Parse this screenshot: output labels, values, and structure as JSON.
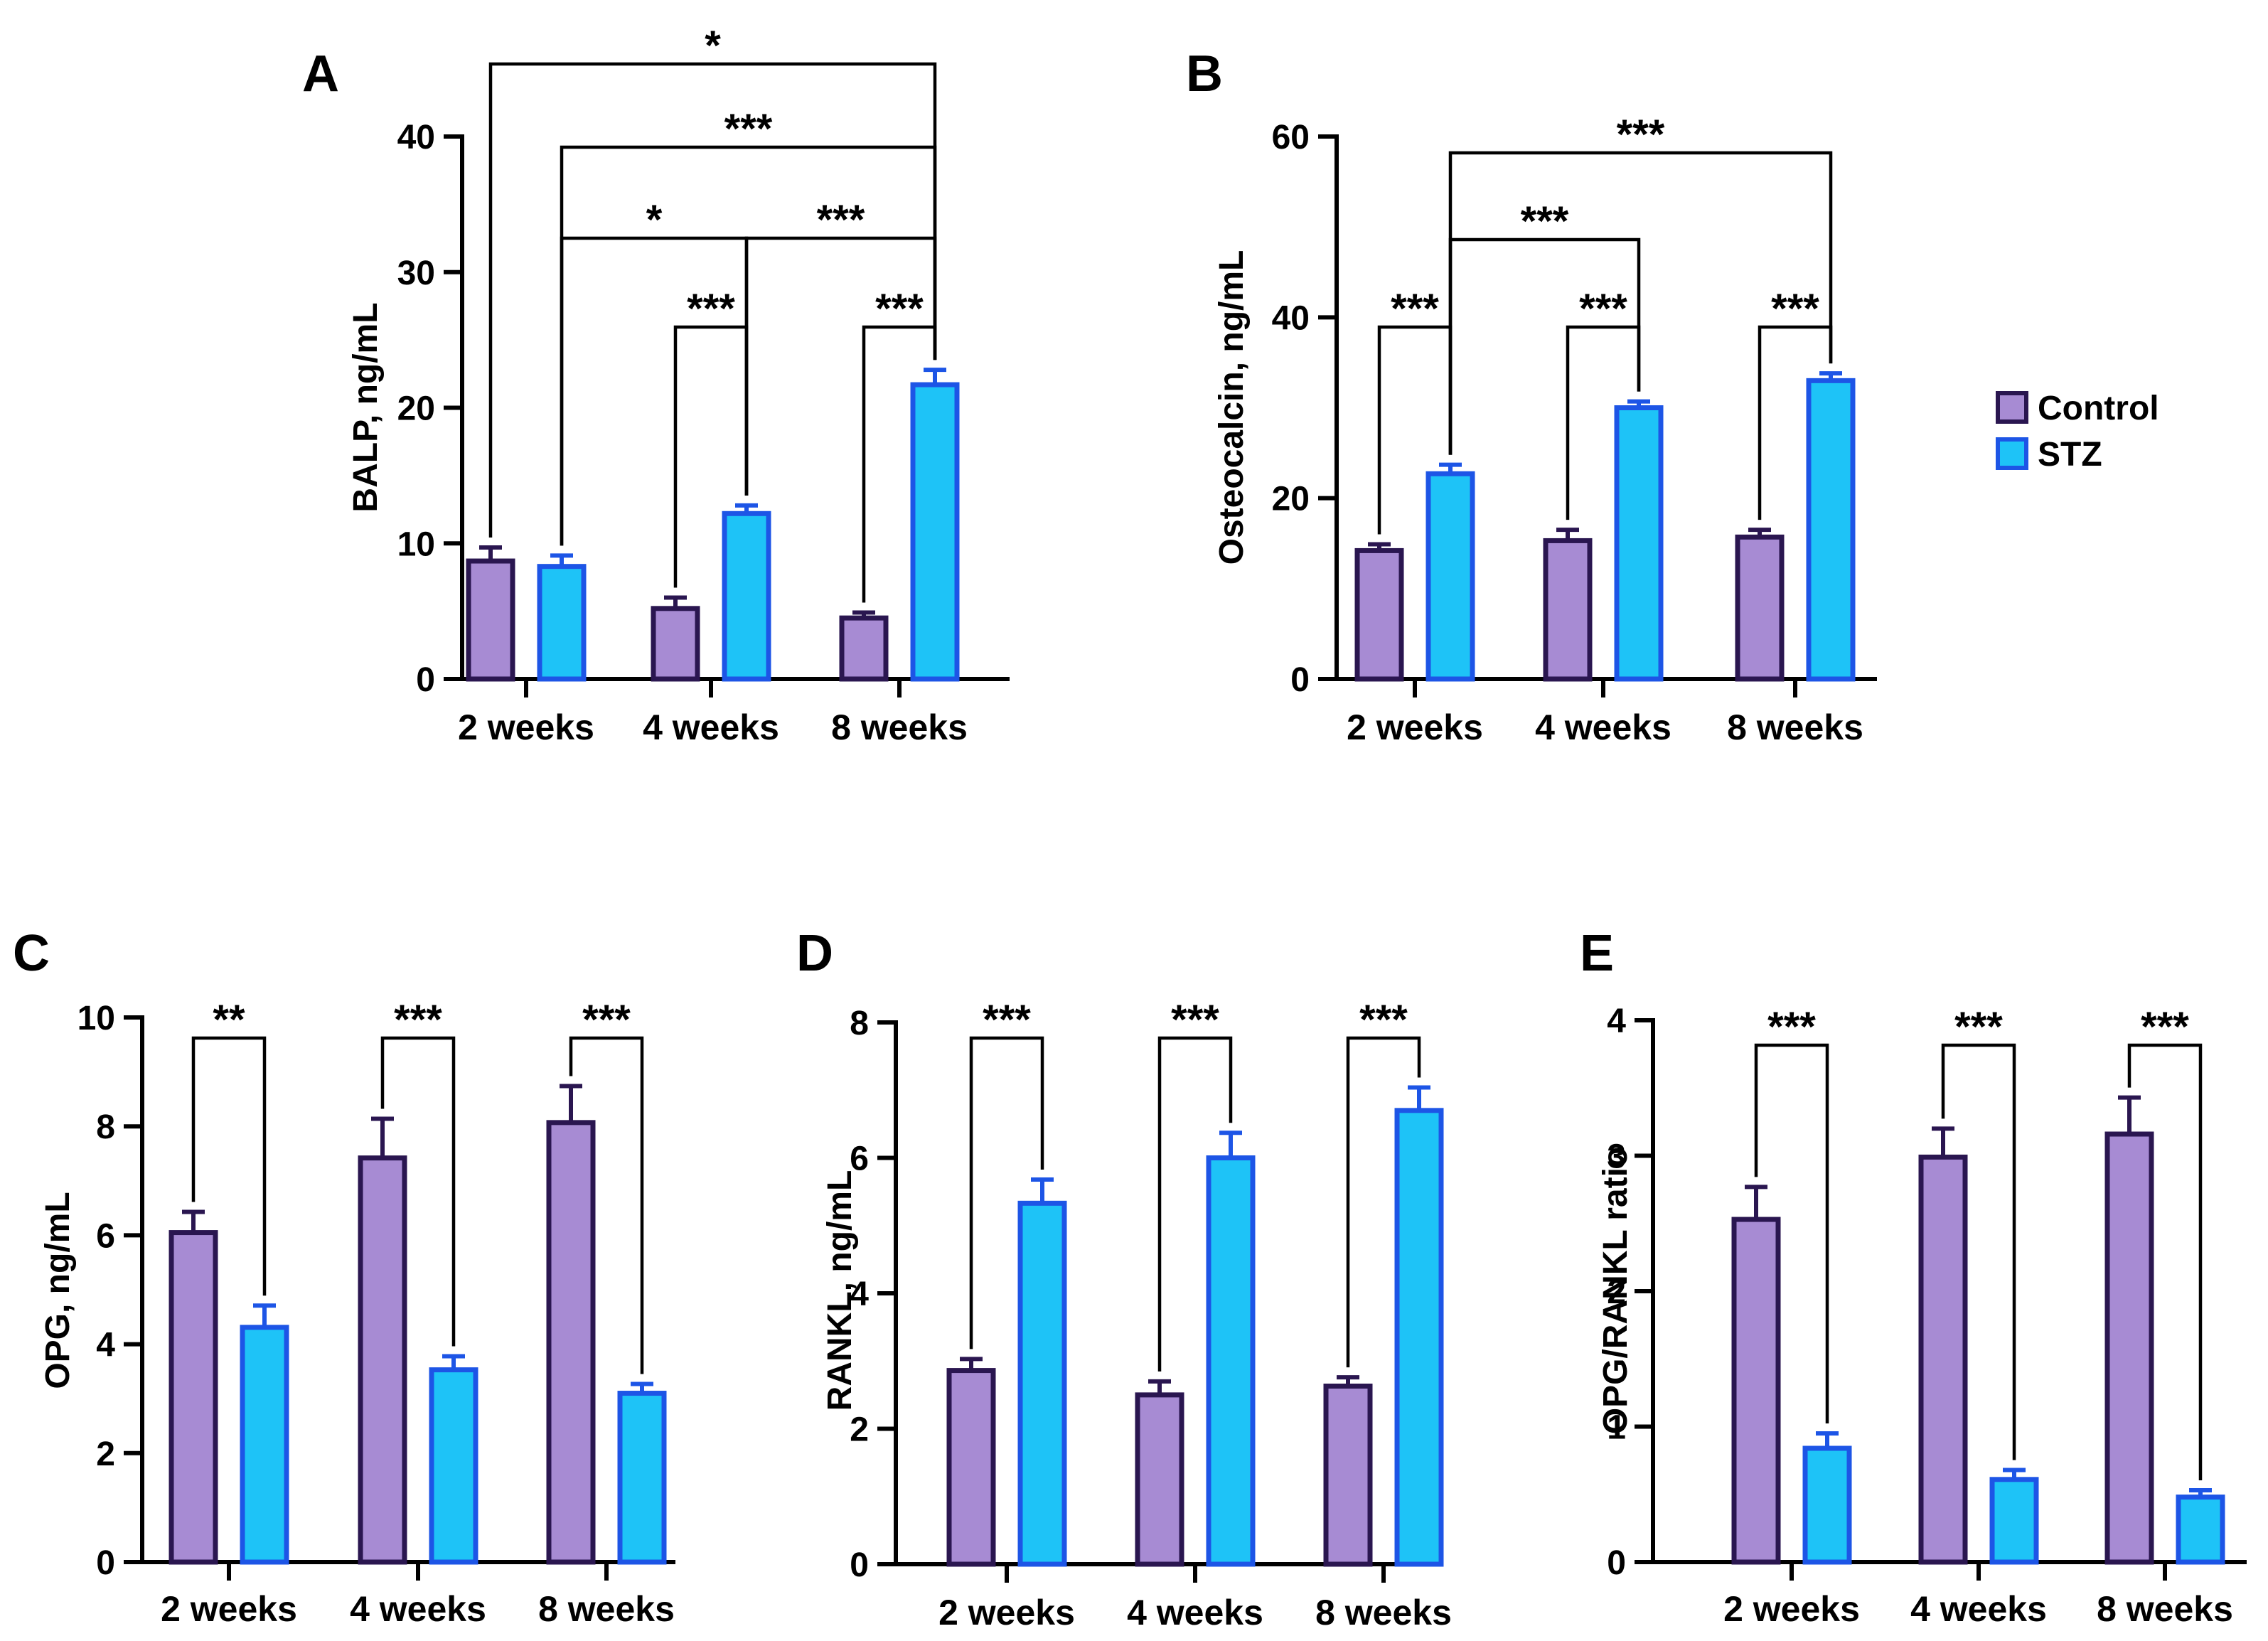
{
  "legend": {
    "entries": [
      {
        "name": "Control",
        "fill": "#a78bd3",
        "stroke": "#2a1650"
      },
      {
        "name": "STZ",
        "fill": "#1ec3f7",
        "stroke": "#1d55e6"
      }
    ]
  },
  "chart_data": [
    {
      "id": "A",
      "panel_label": "A",
      "type": "bar",
      "ylabel": "BALP, ng/mL",
      "ylim": [
        0,
        40
      ],
      "yticks": [
        0,
        10,
        20,
        30,
        40
      ],
      "categories": [
        "2 weeks",
        "4 weeks",
        "8 weeks"
      ],
      "series": [
        {
          "name": "Control",
          "values": [
            8.7,
            5.2,
            4.5
          ],
          "errors": [
            1.0,
            0.8,
            0.4
          ]
        },
        {
          "name": "STZ",
          "values": [
            8.3,
            12.2,
            21.7
          ],
          "errors": [
            0.8,
            0.6,
            1.1
          ]
        }
      ],
      "comparisons": [
        {
          "from": [
            0,
            0
          ],
          "to": [
            2,
            1
          ],
          "label": "*"
        },
        {
          "from": [
            0,
            1
          ],
          "to": [
            2,
            1
          ],
          "label": "***"
        },
        {
          "from": [
            0,
            1
          ],
          "to": [
            1,
            1
          ],
          "label": "*"
        },
        {
          "from": [
            1,
            1
          ],
          "to": [
            2,
            1
          ],
          "label": "***"
        },
        {
          "from": [
            1,
            0
          ],
          "to": [
            1,
            1
          ],
          "label": "***"
        },
        {
          "from": [
            2,
            0
          ],
          "to": [
            2,
            1
          ],
          "label": "***"
        }
      ]
    },
    {
      "id": "B",
      "panel_label": "B",
      "type": "bar",
      "ylabel": "Osteocalcin, ng/mL",
      "ylim": [
        0,
        60
      ],
      "yticks": [
        0,
        20,
        40,
        60
      ],
      "categories": [
        "2 weeks",
        "4 weeks",
        "8 weeks"
      ],
      "series": [
        {
          "name": "Control",
          "values": [
            14.2,
            15.3,
            15.7
          ],
          "errors": [
            0.7,
            1.2,
            0.8
          ]
        },
        {
          "name": "STZ",
          "values": [
            22.7,
            30.0,
            33.0
          ],
          "errors": [
            1.0,
            0.7,
            0.8
          ]
        }
      ],
      "comparisons": [
        {
          "from": [
            0,
            0
          ],
          "to": [
            0,
            1
          ],
          "label": "***"
        },
        {
          "from": [
            1,
            0
          ],
          "to": [
            1,
            1
          ],
          "label": "***"
        },
        {
          "from": [
            2,
            0
          ],
          "to": [
            2,
            1
          ],
          "label": "***"
        },
        {
          "from": [
            0,
            1
          ],
          "to": [
            1,
            1
          ],
          "label": "***"
        },
        {
          "from": [
            0,
            1
          ],
          "to": [
            2,
            1
          ],
          "label": "***"
        }
      ]
    },
    {
      "id": "C",
      "panel_label": "C",
      "type": "bar",
      "ylabel": "OPG, ng/mL",
      "ylim": [
        0,
        10
      ],
      "yticks": [
        0,
        2,
        4,
        6,
        8,
        10
      ],
      "categories": [
        "2 weeks",
        "4 weeks",
        "8 weeks"
      ],
      "series": [
        {
          "name": "Control",
          "values": [
            6.05,
            7.42,
            8.07
          ],
          "errors": [
            0.38,
            0.72,
            0.67
          ]
        },
        {
          "name": "STZ",
          "values": [
            4.31,
            3.53,
            3.1
          ],
          "errors": [
            0.4,
            0.25,
            0.17
          ]
        }
      ],
      "comparisons": [
        {
          "from": [
            0,
            0
          ],
          "to": [
            0,
            1
          ],
          "label": "**"
        },
        {
          "from": [
            1,
            0
          ],
          "to": [
            1,
            1
          ],
          "label": "***"
        },
        {
          "from": [
            2,
            0
          ],
          "to": [
            2,
            1
          ],
          "label": "***"
        }
      ]
    },
    {
      "id": "D",
      "panel_label": "D",
      "type": "bar",
      "ylabel": "RANKL, ng/mL",
      "ylim": [
        0,
        8
      ],
      "yticks": [
        0,
        2,
        4,
        6,
        8
      ],
      "categories": [
        "2 weeks",
        "4 weeks",
        "8 weeks"
      ],
      "series": [
        {
          "name": "Control",
          "values": [
            2.86,
            2.5,
            2.63
          ],
          "errors": [
            0.17,
            0.2,
            0.13
          ]
        },
        {
          "name": "STZ",
          "values": [
            5.33,
            6.0,
            6.7
          ],
          "errors": [
            0.35,
            0.37,
            0.34
          ]
        }
      ],
      "comparisons": [
        {
          "from": [
            0,
            0
          ],
          "to": [
            0,
            1
          ],
          "label": "***"
        },
        {
          "from": [
            1,
            0
          ],
          "to": [
            1,
            1
          ],
          "label": "***"
        },
        {
          "from": [
            2,
            0
          ],
          "to": [
            2,
            1
          ],
          "label": "***"
        }
      ]
    },
    {
      "id": "E",
      "panel_label": "E",
      "type": "bar",
      "ylabel": "OPG/RANKL ratio",
      "ylim": [
        0,
        4
      ],
      "yticks": [
        0,
        1,
        2,
        3,
        4
      ],
      "categories": [
        "2 weeks",
        "4 weeks",
        "8 weeks"
      ],
      "series": [
        {
          "name": "Control",
          "values": [
            2.53,
            2.99,
            3.16
          ],
          "errors": [
            0.24,
            0.21,
            0.27
          ]
        },
        {
          "name": "STZ",
          "values": [
            0.84,
            0.61,
            0.48
          ],
          "errors": [
            0.11,
            0.07,
            0.05
          ]
        }
      ],
      "comparisons": [
        {
          "from": [
            0,
            0
          ],
          "to": [
            0,
            1
          ],
          "label": "***"
        },
        {
          "from": [
            1,
            0
          ],
          "to": [
            1,
            1
          ],
          "label": "***"
        },
        {
          "from": [
            2,
            0
          ],
          "to": [
            2,
            1
          ],
          "label": "***"
        }
      ]
    }
  ]
}
